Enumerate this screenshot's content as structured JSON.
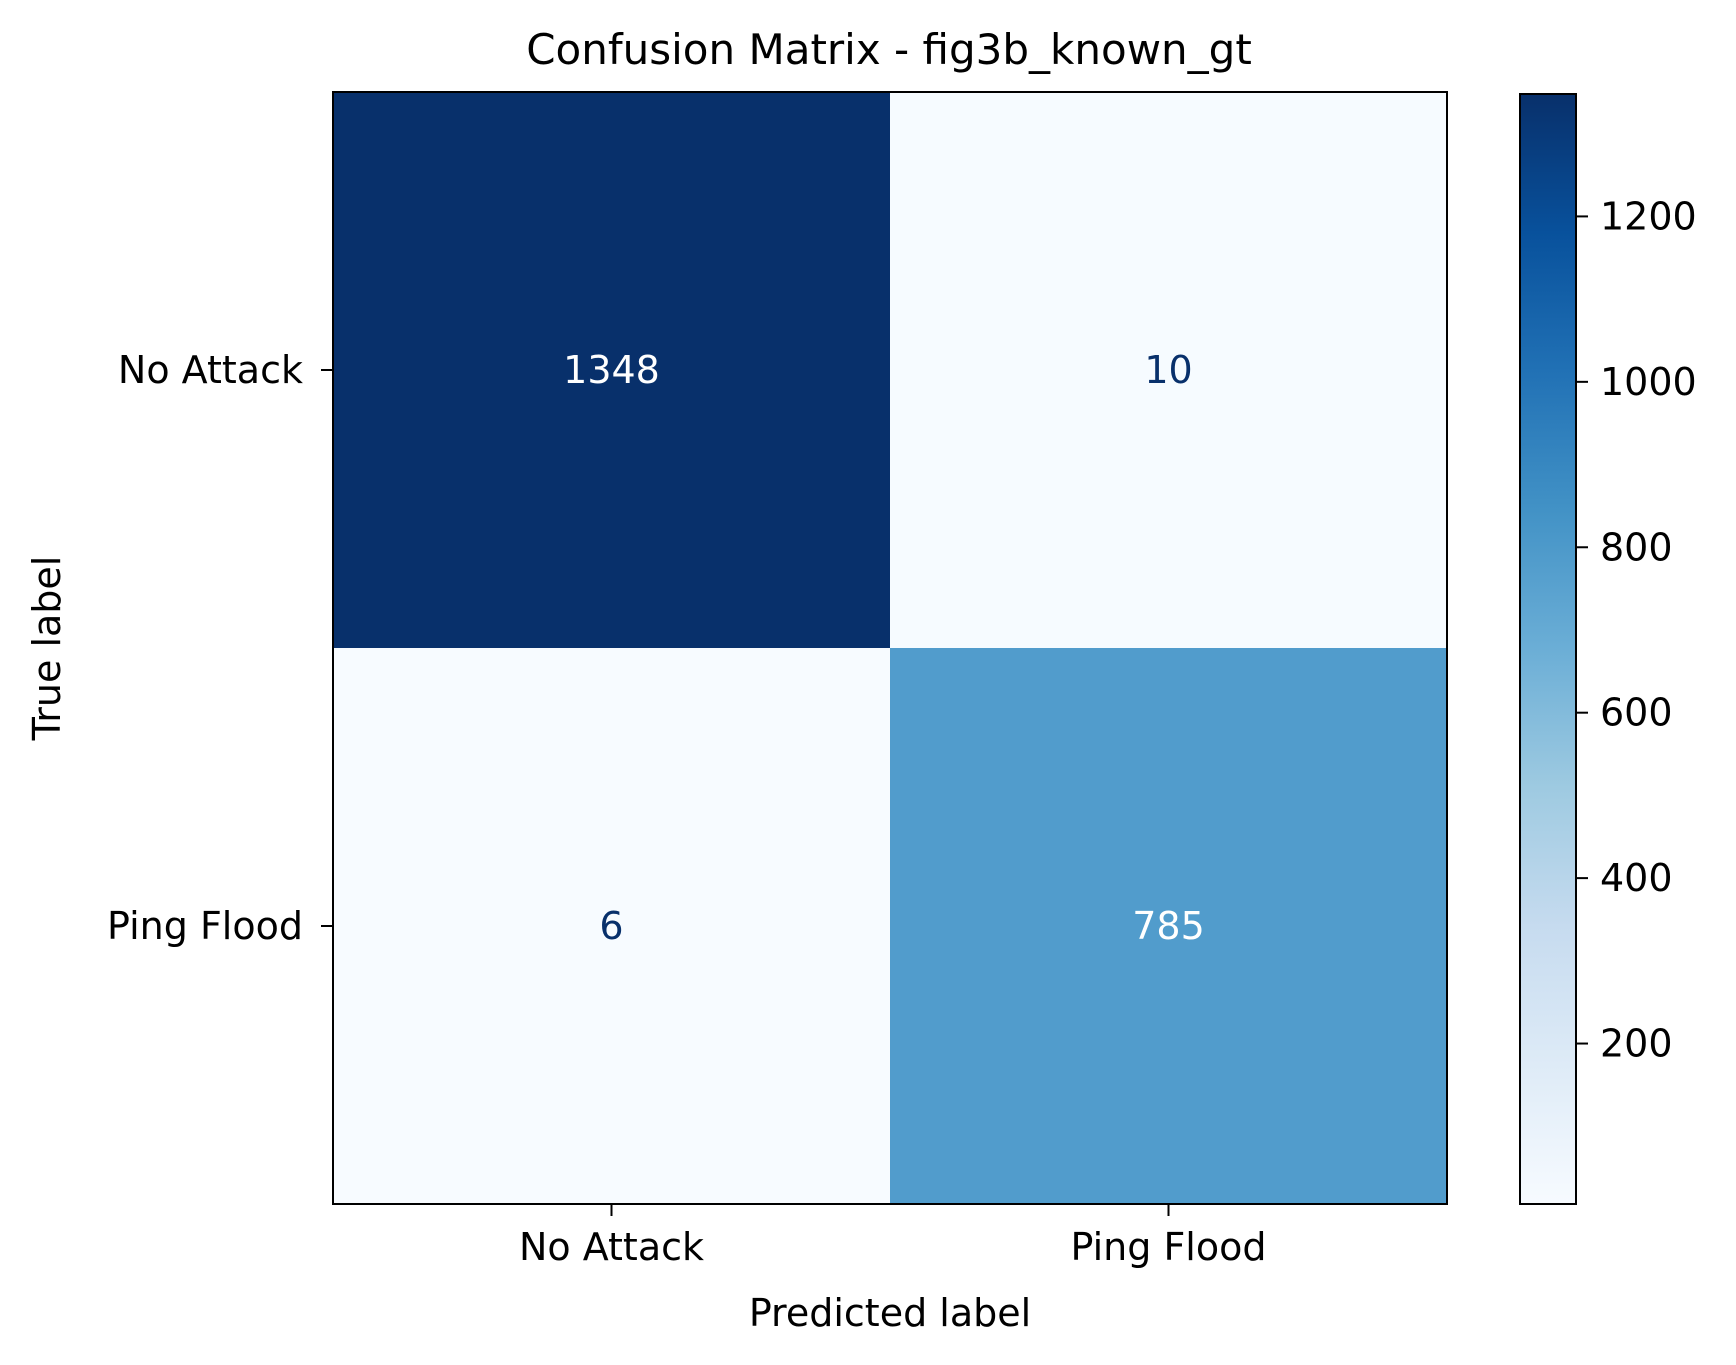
{
  "chart_data": {
    "type": "heatmap",
    "title": "Confusion Matrix - fig3b_known_gt",
    "xlabel": "Predicted label",
    "ylabel": "True label",
    "x_categories": [
      "No Attack",
      "Ping Flood"
    ],
    "y_categories": [
      "No Attack",
      "Ping Flood"
    ],
    "matrix": [
      [
        1348,
        10
      ],
      [
        6,
        785
      ]
    ],
    "colormap": "Blues",
    "colorbar": {
      "min": 6,
      "max": 1348,
      "ticks": [
        200,
        400,
        600,
        800,
        1000,
        1200
      ]
    },
    "text_colors": {
      "on_dark": "#ffffff",
      "on_light": "#08306b"
    },
    "grid": false
  }
}
